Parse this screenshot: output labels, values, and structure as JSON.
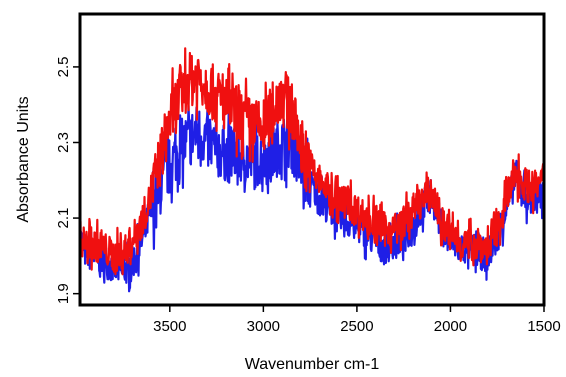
{
  "chart_data": {
    "type": "line",
    "title": "",
    "xlabel": "Wavenumber cm-1",
    "ylabel": "Absorbance Units",
    "xlim": [
      3980,
      1500
    ],
    "ylim": [
      1.87,
      2.64
    ],
    "x_reversed": true,
    "grid": false,
    "legend": "none",
    "xticks": [
      3500,
      3000,
      2500,
      2000,
      1500
    ],
    "xtick_labels": [
      "3500",
      "3000",
      "2500",
      "2000",
      "1500"
    ],
    "yticks": [
      1.9,
      2.1,
      2.3,
      2.5
    ],
    "ytick_labels": [
      "1.9",
      "2.1",
      "2.3",
      "2.5"
    ],
    "series": [
      {
        "color": "#1f1fe6",
        "x": [
          3980,
          3950,
          3900,
          3850,
          3800,
          3750,
          3700,
          3650,
          3600,
          3550,
          3500,
          3450,
          3400,
          3350,
          3300,
          3250,
          3200,
          3150,
          3100,
          3050,
          3000,
          2950,
          2900,
          2850,
          2800,
          2750,
          2700,
          2650,
          2600,
          2550,
          2500,
          2450,
          2400,
          2350,
          2300,
          2250,
          2200,
          2150,
          2100,
          2050,
          2000,
          1950,
          1900,
          1850,
          1800,
          1750,
          1700,
          1650,
          1600,
          1550,
          1500
        ],
        "y": [
          2.05,
          2.01,
          2.0,
          1.99,
          1.97,
          1.96,
          1.98,
          2.04,
          2.12,
          2.18,
          2.24,
          2.28,
          2.31,
          2.33,
          2.3,
          2.28,
          2.27,
          2.27,
          2.26,
          2.25,
          2.26,
          2.27,
          2.3,
          2.3,
          2.23,
          2.19,
          2.15,
          2.13,
          2.1,
          2.09,
          2.08,
          2.06,
          2.04,
          2.02,
          2.04,
          2.05,
          2.08,
          2.13,
          2.16,
          2.08,
          2.04,
          2.02,
          2.02,
          2.01,
          2.0,
          2.05,
          2.13,
          2.21,
          2.16,
          2.14,
          2.16
        ]
      },
      {
        "color": "#f01010",
        "x": [
          3980,
          3950,
          3900,
          3850,
          3800,
          3750,
          3700,
          3650,
          3600,
          3550,
          3500,
          3450,
          3400,
          3350,
          3300,
          3250,
          3200,
          3150,
          3100,
          3050,
          3000,
          2950,
          2900,
          2850,
          2800,
          2750,
          2700,
          2650,
          2600,
          2550,
          2500,
          2450,
          2400,
          2350,
          2300,
          2250,
          2200,
          2150,
          2100,
          2050,
          2000,
          1950,
          1900,
          1850,
          1800,
          1750,
          1700,
          1650,
          1600,
          1550,
          1500
        ],
        "y": [
          2.05,
          2.03,
          2.03,
          2.02,
          2.0,
          2.01,
          2.04,
          2.09,
          2.16,
          2.26,
          2.36,
          2.42,
          2.46,
          2.48,
          2.45,
          2.42,
          2.4,
          2.38,
          2.36,
          2.34,
          2.34,
          2.38,
          2.44,
          2.38,
          2.3,
          2.24,
          2.2,
          2.17,
          2.15,
          2.14,
          2.12,
          2.1,
          2.09,
          2.07,
          2.07,
          2.09,
          2.12,
          2.15,
          2.17,
          2.09,
          2.06,
          2.04,
          2.03,
          2.03,
          2.02,
          2.07,
          2.15,
          2.22,
          2.19,
          2.18,
          2.2
        ]
      }
    ]
  }
}
